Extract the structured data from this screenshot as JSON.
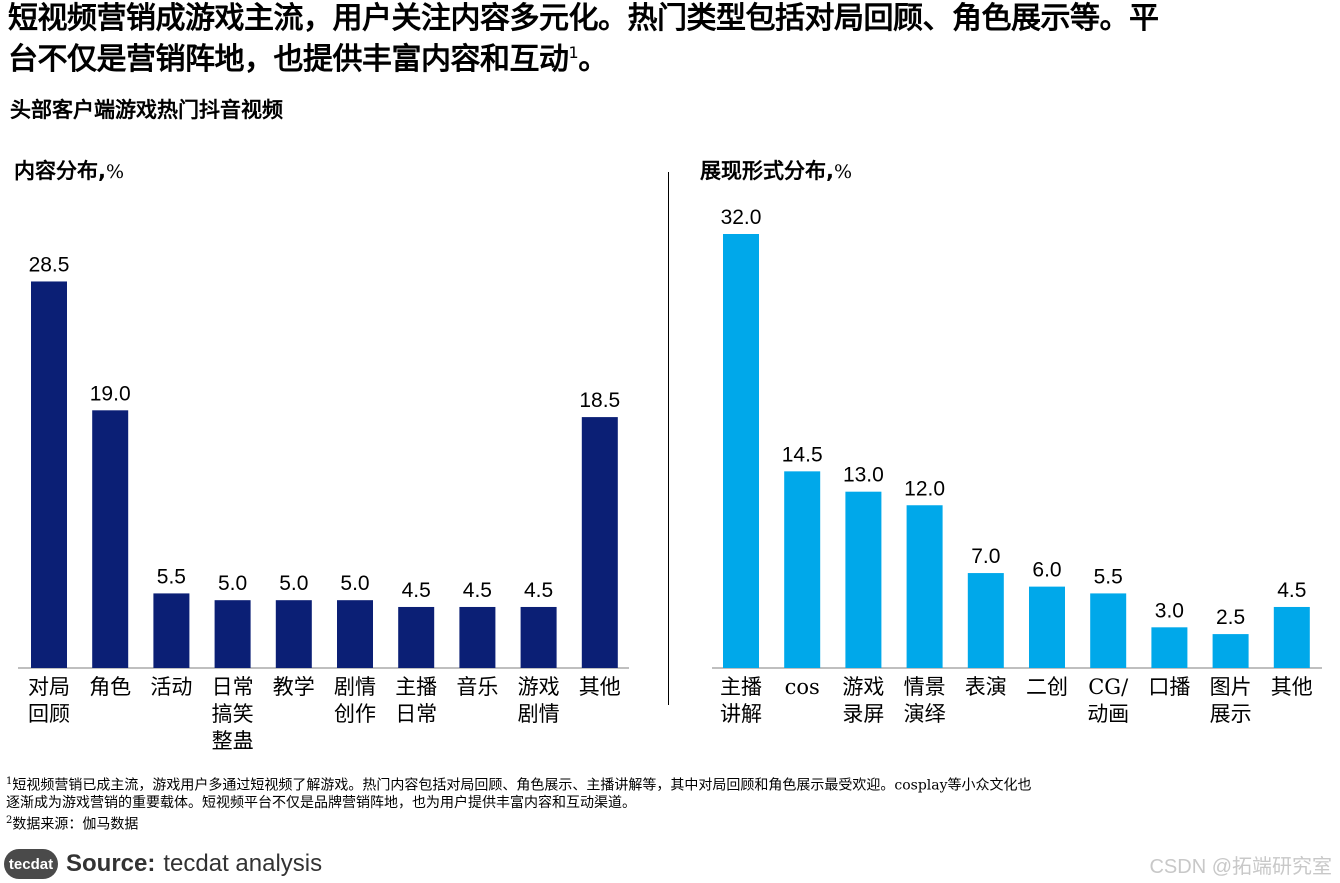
{
  "headline": {
    "line1": "短视频营销成游戏主流，用户关注内容多元化。热门类型包括对局回顾、角色展示等。平",
    "line2": "台不仅是营销阵地，也提供丰富内容和互动",
    "sup": "1",
    "end": "。"
  },
  "subtitle": "头部客户端游戏热门抖音视频",
  "colors": {
    "left_bar": "#0b1f75",
    "right_bar": "#00a8ea"
  },
  "chart_data": [
    {
      "type": "bar",
      "title": "内容分布,",
      "unit": "%",
      "categories": [
        [
          "对局",
          "回顾"
        ],
        [
          "角色"
        ],
        [
          "活动"
        ],
        [
          "日常",
          "搞笑",
          "整蛊"
        ],
        [
          "教学"
        ],
        [
          "剧情",
          "创作"
        ],
        [
          "主播",
          "日常"
        ],
        [
          "音乐"
        ],
        [
          "游戏",
          "剧情"
        ],
        [
          "其他"
        ]
      ],
      "values": [
        28.5,
        19.0,
        5.5,
        5.0,
        5.0,
        5.0,
        4.5,
        4.5,
        4.5,
        18.5
      ],
      "value_labels": [
        "28.5",
        "19.0",
        "5.5",
        "5.0",
        "5.0",
        "5.0",
        "4.5",
        "4.5",
        "4.5",
        "18.5"
      ],
      "ylim": [
        0,
        32
      ]
    },
    {
      "type": "bar",
      "title": "展现形式分布,",
      "unit": "%",
      "categories": [
        [
          "主播",
          "讲解"
        ],
        [
          "cos"
        ],
        [
          "游戏",
          "录屏"
        ],
        [
          "情景",
          "演绎"
        ],
        [
          "表演"
        ],
        [
          "二创"
        ],
        [
          "CG/",
          "动画"
        ],
        [
          "口播"
        ],
        [
          "图片",
          "展示"
        ],
        [
          "其他"
        ]
      ],
      "values": [
        32.0,
        14.5,
        13.0,
        12.0,
        7.0,
        6.0,
        5.5,
        3.0,
        2.5,
        4.5
      ],
      "value_labels": [
        "32.0",
        "14.5",
        "13.0",
        "12.0",
        "7.0",
        "6.0",
        "5.5",
        "3.0",
        "2.5",
        "4.5"
      ],
      "ylim": [
        0,
        32
      ]
    }
  ],
  "footnotes": {
    "fn1_mark": "1",
    "fn1_line1": "短视频营销已成主流，游戏用户多通过短视频了解游戏。热门内容包括对局回顾、角色展示、主播讲解等，其中对局回顾和角色展示最受欢迎。cosplay等小众文化也",
    "fn1_line2": "逐渐成为游戏营销的重要载体。短视频平台不仅是品牌营销阵地，也为用户提供丰富内容和互动渠道。",
    "fn2_mark": "2",
    "fn2_text": "数据来源：伽马数据"
  },
  "source": {
    "logo": "tecdat",
    "label": "Source:",
    "text": "tecdat analysis"
  },
  "watermark": "CSDN @拓端研究室"
}
